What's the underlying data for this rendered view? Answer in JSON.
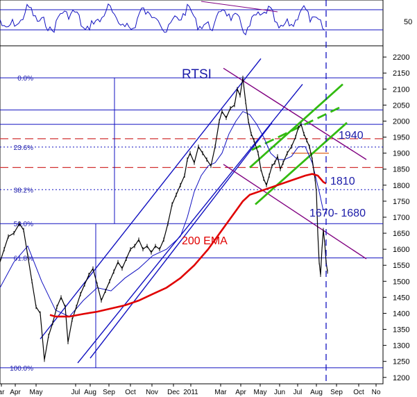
{
  "chart_data": {
    "type": "line",
    "title": "RTSI",
    "colors": {
      "price": "#000000",
      "ema200": "#e00000",
      "channel": "#1010c0",
      "downtrend": "#800080",
      "green_channel": "#33bb11",
      "fib": "#1a1aa8",
      "dashed_red": "#d23232",
      "horiz": "#1010c0"
    },
    "annotations": {
      "ema_label": "200 EMA",
      "level_1940": "1940",
      "level_1810": "1810",
      "level_range": "1670- 1680"
    },
    "y_axis": {
      "ticks": [
        "1200",
        "1250",
        "1300",
        "1350",
        "1400",
        "1450",
        "1500",
        "1550",
        "1600",
        "1650",
        "1700",
        "1750",
        "1800",
        "1850",
        "1900",
        "1950",
        "2000",
        "2050",
        "2100",
        "2150",
        "2200"
      ],
      "range": [
        1180,
        2235
      ]
    },
    "osc_axis": {
      "ticks": [
        "50"
      ]
    },
    "x_axis": {
      "ticks": [
        "ar",
        "Apr",
        "May",
        "Jul",
        "Aug",
        "Sep",
        "Oct",
        "Nov",
        "Dec",
        "2011",
        "Mar",
        "Apr",
        "May",
        "Jun",
        "Jul",
        "Aug",
        "Sep",
        "Oct",
        "No"
      ]
    },
    "fib_levels": [
      {
        "label": "0.0%",
        "value": 2135
      },
      {
        "label": "23.6%",
        "value": 1919
      },
      {
        "label": "38.2%",
        "value": 1786
      },
      {
        "label": "50.0%",
        "value": 1680
      },
      {
        "label": "61.8%",
        "value": 1573
      },
      {
        "label": "100.0%",
        "value": 1230
      }
    ],
    "price_anchors": [
      [
        0,
        1560
      ],
      [
        6,
        1600
      ],
      [
        12,
        1640
      ],
      [
        20,
        1650
      ],
      [
        28,
        1680
      ],
      [
        34,
        1660
      ],
      [
        40,
        1580
      ],
      [
        46,
        1500
      ],
      [
        52,
        1420
      ],
      [
        58,
        1400
      ],
      [
        64,
        1255
      ],
      [
        70,
        1330
      ],
      [
        76,
        1370
      ],
      [
        82,
        1420
      ],
      [
        88,
        1450
      ],
      [
        94,
        1420
      ],
      [
        98,
        1310
      ],
      [
        104,
        1380
      ],
      [
        110,
        1420
      ],
      [
        116,
        1460
      ],
      [
        122,
        1490
      ],
      [
        128,
        1520
      ],
      [
        134,
        1540
      ],
      [
        140,
        1490
      ],
      [
        146,
        1440
      ],
      [
        152,
        1470
      ],
      [
        158,
        1500
      ],
      [
        164,
        1530
      ],
      [
        170,
        1560
      ],
      [
        176,
        1540
      ],
      [
        182,
        1570
      ],
      [
        188,
        1600
      ],
      [
        194,
        1610
      ],
      [
        200,
        1630
      ],
      [
        206,
        1600
      ],
      [
        212,
        1610
      ],
      [
        218,
        1590
      ],
      [
        224,
        1610
      ],
      [
        230,
        1600
      ],
      [
        236,
        1630
      ],
      [
        242,
        1680
      ],
      [
        248,
        1740
      ],
      [
        254,
        1770
      ],
      [
        260,
        1800
      ],
      [
        266,
        1830
      ],
      [
        270,
        1880
      ],
      [
        274,
        1900
      ],
      [
        280,
        1870
      ],
      [
        286,
        1920
      ],
      [
        292,
        1900
      ],
      [
        298,
        1880
      ],
      [
        304,
        1860
      ],
      [
        310,
        1920
      ],
      [
        316,
        2000
      ],
      [
        320,
        2030
      ],
      [
        326,
        2010
      ],
      [
        332,
        2040
      ],
      [
        338,
        2050
      ],
      [
        342,
        2100
      ],
      [
        346,
        2080
      ],
      [
        350,
        2135
      ],
      [
        354,
        2060
      ],
      [
        358,
        2000
      ],
      [
        362,
        1960
      ],
      [
        366,
        1940
      ],
      [
        372,
        1900
      ],
      [
        376,
        1850
      ],
      [
        380,
        1820
      ],
      [
        384,
        1800
      ],
      [
        388,
        1830
      ],
      [
        392,
        1860
      ],
      [
        396,
        1870
      ],
      [
        400,
        1890
      ],
      [
        404,
        1850
      ],
      [
        408,
        1870
      ],
      [
        414,
        1900
      ],
      [
        420,
        1920
      ],
      [
        426,
        1950
      ],
      [
        430,
        1980
      ],
      [
        434,
        1990
      ],
      [
        438,
        1960
      ],
      [
        442,
        1940
      ],
      [
        446,
        1920
      ],
      [
        450,
        1880
      ],
      [
        454,
        1820
      ],
      [
        456,
        1780
      ],
      [
        458,
        1650
      ],
      [
        460,
        1560
      ],
      [
        462,
        1520
      ],
      [
        464,
        1600
      ],
      [
        466,
        1660
      ],
      [
        468,
        1620
      ],
      [
        470,
        1560
      ],
      [
        472,
        1530
      ]
    ],
    "ema_anchors": [
      [
        72,
        1395
      ],
      [
        80,
        1390
      ],
      [
        100,
        1390
      ],
      [
        120,
        1398
      ],
      [
        140,
        1405
      ],
      [
        160,
        1415
      ],
      [
        180,
        1425
      ],
      [
        200,
        1440
      ],
      [
        220,
        1460
      ],
      [
        240,
        1480
      ],
      [
        260,
        1510
      ],
      [
        280,
        1550
      ],
      [
        300,
        1600
      ],
      [
        320,
        1660
      ],
      [
        340,
        1720
      ],
      [
        350,
        1750
      ],
      [
        360,
        1770
      ],
      [
        380,
        1785
      ],
      [
        400,
        1800
      ],
      [
        420,
        1815
      ],
      [
        440,
        1830
      ],
      [
        450,
        1835
      ],
      [
        458,
        1830
      ],
      [
        466,
        1810
      ],
      [
        470,
        1805
      ]
    ],
    "ma_thin_anchors": [
      [
        0,
        1480
      ],
      [
        20,
        1560
      ],
      [
        40,
        1610
      ],
      [
        60,
        1500
      ],
      [
        80,
        1410
      ],
      [
        100,
        1390
      ],
      [
        120,
        1440
      ],
      [
        140,
        1480
      ],
      [
        160,
        1470
      ],
      [
        180,
        1510
      ],
      [
        200,
        1540
      ],
      [
        220,
        1580
      ],
      [
        240,
        1600
      ],
      [
        260,
        1640
      ],
      [
        270,
        1700
      ],
      [
        280,
        1780
      ],
      [
        290,
        1830
      ],
      [
        300,
        1860
      ],
      [
        310,
        1870
      ],
      [
        320,
        1900
      ],
      [
        330,
        1960
      ],
      [
        340,
        2000
      ],
      [
        350,
        2030
      ],
      [
        360,
        2020
      ],
      [
        370,
        1990
      ],
      [
        380,
        1950
      ],
      [
        390,
        1900
      ],
      [
        400,
        1880
      ],
      [
        410,
        1880
      ],
      [
        420,
        1890
      ],
      [
        430,
        1920
      ],
      [
        440,
        1920
      ],
      [
        450,
        1870
      ],
      [
        460,
        1780
      ],
      [
        466,
        1720
      ]
    ],
    "horizontal_lines": [
      2135,
      2035,
      1990,
      1680,
      1573,
      1230
    ],
    "dashed_red_lines": [
      1945,
      1855
    ],
    "dotted_lines": [
      1919,
      1786
    ],
    "orange_segment": {
      "x1": 420,
      "x2": 474,
      "value": 1900
    }
  }
}
